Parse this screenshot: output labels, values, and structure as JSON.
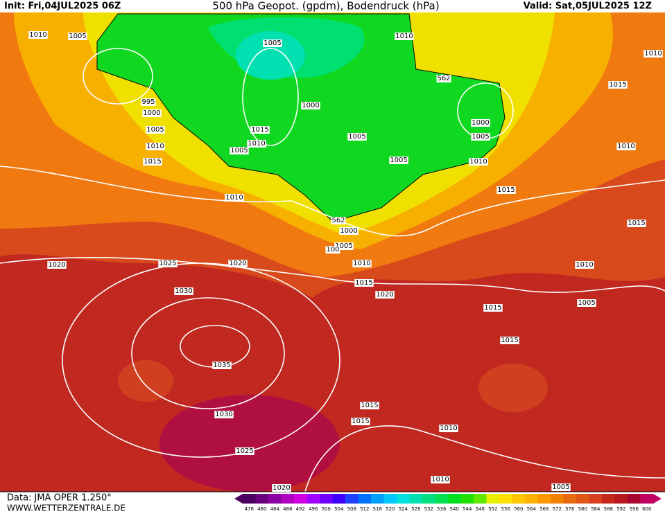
{
  "header": {
    "init": "Init: Fri,04JUL2025 06Z",
    "title": "500 hPa Geopot. (gpdm), Bodendruck (hPa)",
    "valid": "Valid: Sat,05JUL2025 12Z"
  },
  "isobar_labels": [
    1010,
    1005,
    1005,
    995,
    1000,
    1005,
    1010,
    1015,
    1015,
    1010,
    1005,
    1000,
    1005,
    1010,
    1005,
    1005,
    1010,
    562,
    1000,
    1005,
    1010,
    1010,
    562,
    1000,
    1005,
    1010,
    1015,
    1020,
    1020,
    1025,
    1020,
    1030,
    1035,
    1030,
    1025,
    1020,
    1015,
    1015,
    1015,
    1015,
    1015,
    1010,
    1010,
    1005,
    1015,
    1010,
    1005,
    1010,
    1015,
    1010,
    100
  ],
  "footer": {
    "source": "Data: JMA OPER 1.250°",
    "site": "WWW.WETTERZENTRALE.DE"
  },
  "colorbar": {
    "values": [
      476,
      480,
      484,
      488,
      492,
      496,
      500,
      504,
      508,
      512,
      516,
      520,
      524,
      528,
      532,
      536,
      540,
      544,
      548,
      552,
      556,
      560,
      564,
      568,
      572,
      576,
      580,
      584,
      588,
      592,
      596,
      600
    ],
    "colors": [
      "#4b0060",
      "#6a007f",
      "#8a00a0",
      "#b000c0",
      "#d000e0",
      "#a000ff",
      "#7000ff",
      "#4000ff",
      "#2040ff",
      "#0070ff",
      "#00a0ff",
      "#00c8ff",
      "#00e0e0",
      "#00e0b0",
      "#00e080",
      "#00e050",
      "#00e020",
      "#20e000",
      "#60e800",
      "#e8f000",
      "#ffe000",
      "#ffc800",
      "#ffb000",
      "#ff9800",
      "#f08000",
      "#e86a10",
      "#e05818",
      "#d84020",
      "#c8281c",
      "#b81820",
      "#a80830",
      "#c00060"
    ]
  }
}
